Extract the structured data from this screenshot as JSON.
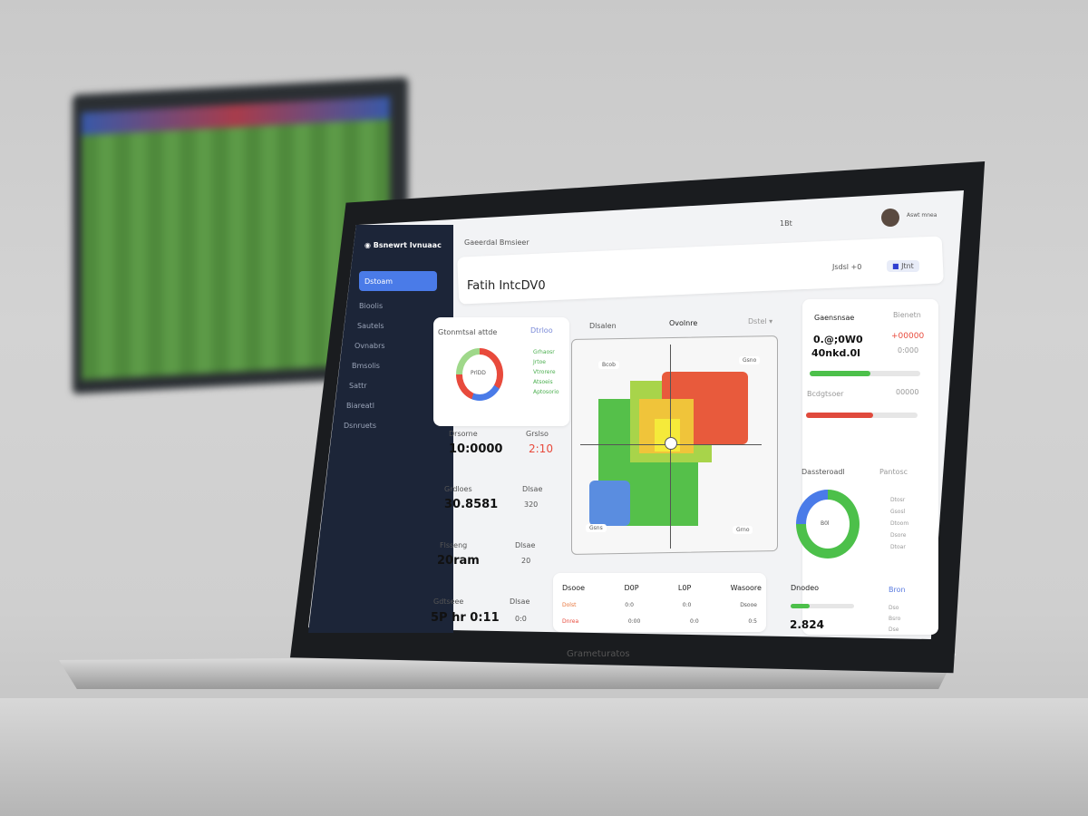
{
  "sidebar": {
    "brand": "Bsnewrt Ivnuaac",
    "items": [
      {
        "label": "Dstoam"
      },
      {
        "label": "Bioolis"
      },
      {
        "label": "Sautels"
      },
      {
        "label": "Ovnabrs"
      },
      {
        "label": "Bmsolis"
      },
      {
        "label": "Sattr"
      },
      {
        "label": "Biareatl"
      },
      {
        "label": "Dsnruets"
      }
    ]
  },
  "header": {
    "breadcrumb": "Gaeerdal Bmsieer",
    "title": "Fatih IntcDV0",
    "top_label": "1Bt",
    "user": "Aswt mnea",
    "btn1": "Jsdsl +0",
    "btn2": "Jtnt"
  },
  "left_cards": [
    {
      "title": "Gtonmtsal attde",
      "tag": "Dtrloo",
      "legend": [
        "Grhaosr",
        "Jrtoe",
        "Vtrorere",
        "Atsoeis",
        "Aptosorio"
      ],
      "center": "PrlDD"
    },
    {
      "title": "Drsorne",
      "value": "10:0000",
      "aside": "2:10",
      "aside_label": "Grslso"
    },
    {
      "title": "Grdloes",
      "value": "30.8581",
      "aside": "320",
      "aside_label": "Dlsae"
    },
    {
      "title": "Flsseng",
      "value": "20ram",
      "aside": "20",
      "aside_label": "Dlsae"
    },
    {
      "title": "Gdtseee",
      "value": "5P hr 0:11",
      "aside": "0:0",
      "aside_label": "Dlsae"
    }
  ],
  "heatmap": {
    "title": "Dlsalen",
    "subtitle": "Ovolnre",
    "filter": "Dstel",
    "labels": [
      "Bcob",
      "Gsno",
      "Gsns",
      "Grno"
    ],
    "colors": [
      "#e84a3c",
      "#f0a23a",
      "#f2e23a",
      "#9fd24a",
      "#4fbf4a",
      "#5a8de0"
    ]
  },
  "table": {
    "headers": [
      "Dsooe",
      "D0P",
      "L0P",
      "Wasoore"
    ],
    "rows": [
      [
        "Dolst",
        "0:0",
        "0:0",
        "Dsooe"
      ],
      [
        "Dnrea",
        "0:00",
        "0:0",
        "0:5"
      ]
    ]
  },
  "right_cards": {
    "top": {
      "title": "Gaensnsae",
      "tag": "Bienetn",
      "value1": "0.@;0W0",
      "value2": "40nkd.0l",
      "red_value": "+00000",
      "sub": "0:000",
      "progress_green": 0.55,
      "label2": "Bcdgtsoer",
      "value3": "00000",
      "progress_red": 0.6
    },
    "donut": {
      "title": "Dassteroadl",
      "tag": "Pantosc",
      "center": "B0l",
      "legend": [
        "Dtosr",
        "Gsosl",
        "Dtoom",
        "Dsore",
        "Dtoar"
      ],
      "green_fraction": 0.75
    },
    "bottom": {
      "title": "Dnodeo",
      "tag": "Bron",
      "value": "2.824",
      "progress": 0.3,
      "rows": [
        "Dso",
        "Bsro",
        "Dse"
      ]
    }
  },
  "laptop_brand": "Grameturatos"
}
